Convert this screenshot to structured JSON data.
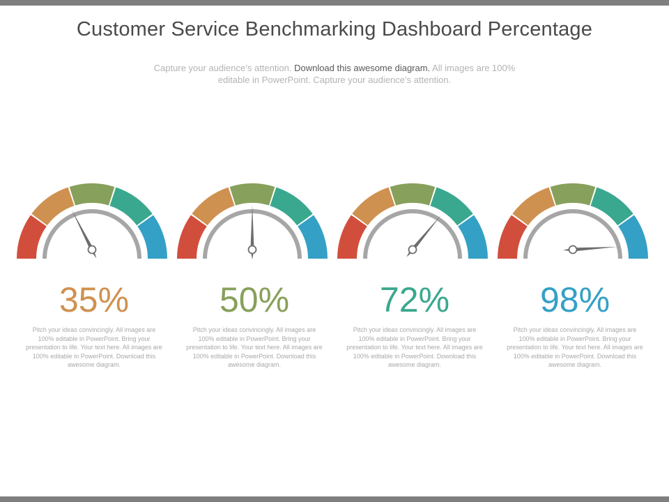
{
  "title": "Customer Service Benchmarking Dashboard Percentage",
  "subtitle": {
    "part1": "Capture your audience’s attention. ",
    "part2": "Download this awesome diagram.",
    "part3": " All images are 100% editable in PowerPoint. Capture your audience’s attention."
  },
  "colors": {
    "segments": [
      "#d24e3c",
      "#cf9150",
      "#87a05b",
      "#3aa88e",
      "#35a0c6"
    ],
    "track": "#a6a6a6",
    "bar": "#7f7f7f"
  },
  "gauges": [
    {
      "value": 35,
      "label": "35%",
      "color": "#cf9150",
      "description": "Pitch your ideas convincingly. All images are 100% editable in PowerPoint. Bring your presentation to life. Your text here. All images are 100% editable in PowerPoint. Download this awesome diagram."
    },
    {
      "value": 50,
      "label": "50%",
      "color": "#87a05b",
      "description": "Pitch your ideas convincingly. All images are 100% editable in PowerPoint. Bring your presentation to life. Your text here. All images are 100% editable in PowerPoint. Download this awesome diagram."
    },
    {
      "value": 72,
      "label": "72%",
      "color": "#3aa88e",
      "description": "Pitch your ideas convincingly. All images are 100% editable in PowerPoint. Bring your presentation to life. Your text here. All images are 100% editable in PowerPoint. Download this awesome diagram."
    },
    {
      "value": 98,
      "label": "98%",
      "color": "#35a0c6",
      "description": "Pitch your ideas convincingly. All images are 100% editable in PowerPoint. Bring your presentation to life. Your text here. All images are 100% editable in PowerPoint. Download this awesome diagram."
    }
  ]
}
